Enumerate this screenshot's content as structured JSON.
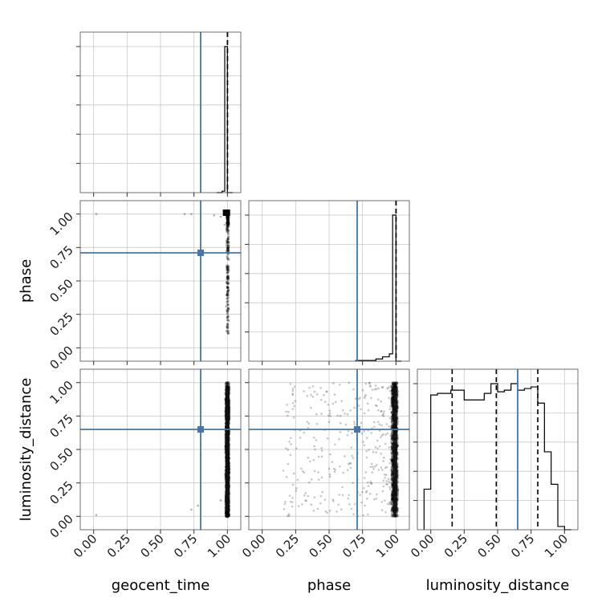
{
  "chart_data": {
    "type": "corner",
    "parameters": [
      "geocent_time",
      "phase",
      "luminosity_distance"
    ],
    "axis_labels": {
      "x": [
        "geocent_time",
        "phase",
        "luminosity_distance"
      ],
      "y": [
        "",
        "phase",
        "luminosity_distance"
      ]
    },
    "axis_range": [
      -0.1,
      1.1
    ],
    "tick_values": [
      0.0,
      0.25,
      0.5,
      0.75,
      1.0
    ],
    "tick_labels": [
      "0.00",
      "0.25",
      "0.50",
      "0.75",
      "1.00"
    ],
    "grid": true,
    "truths": {
      "geocent_time": 0.8,
      "phase": 0.71,
      "luminosity_distance": 0.65
    },
    "colors": {
      "truth": "#4477aa",
      "histogram": "#000000",
      "points": "#000000",
      "grid": "#c8c8c8"
    },
    "histograms": {
      "geocent_time": {
        "bin_edges": [
          0.92,
          0.96,
          0.98,
          1.0,
          1.02,
          1.04
        ],
        "counts": [
          0,
          0.01,
          1.0,
          0,
          0
        ],
        "quantiles": [
          1.0,
          1.0,
          1.0
        ]
      },
      "phase": {
        "bin_edges": [
          0.7,
          0.75,
          0.8,
          0.85,
          0.9,
          0.95,
          0.975,
          1.0,
          1.04
        ],
        "counts": [
          0.005,
          0.005,
          0.005,
          0.015,
          0.03,
          0.05,
          1.0,
          0
        ],
        "quantiles": [
          1.0,
          1.0,
          1.0
        ]
      },
      "luminosity_distance": {
        "bin_edges": [
          -0.05,
          0.0,
          0.05,
          0.1,
          0.15,
          0.2,
          0.25,
          0.3,
          0.35,
          0.4,
          0.45,
          0.5,
          0.55,
          0.6,
          0.65,
          0.7,
          0.75,
          0.8,
          0.85,
          0.9,
          0.95,
          1.0,
          1.05
        ],
        "counts": [
          0.25,
          0.83,
          0.84,
          0.84,
          0.86,
          0.86,
          0.8,
          0.8,
          0.8,
          0.84,
          0.9,
          0.85,
          0.86,
          0.9,
          0.86,
          0.87,
          0.88,
          0.78,
          0.48,
          0.28,
          0.02,
          0
        ],
        "quantiles": [
          0.16,
          0.49,
          0.8
        ]
      }
    },
    "scatter": {
      "phase_vs_geocent_time": {
        "x_spread": [
          0.995,
          1.01
        ],
        "y_range": [
          0.1,
          1.02
        ],
        "outliers": [
          [
            0.02,
            1.0
          ],
          [
            0.68,
            1.0
          ],
          [
            0.73,
            1.0
          ],
          [
            0.9,
            0.99
          ],
          [
            0.95,
            0.98
          ],
          [
            0.98,
            0.92
          ],
          [
            0.99,
            0.31
          ],
          [
            1.0,
            0.18
          ]
        ]
      },
      "luminosity_distance_vs_geocent_time": {
        "x_spread": [
          0.99,
          1.01
        ],
        "y_range": [
          0.0,
          1.0
        ],
        "outliers": [
          [
            0.02,
            0.01
          ],
          [
            0.73,
            0.05
          ],
          [
            0.78,
            0.08
          ],
          [
            0.95,
            0.12
          ]
        ]
      },
      "luminosity_distance_vs_phase": {
        "x_spread": [
          0.97,
          1.01
        ],
        "y_range": [
          0.0,
          1.0
        ],
        "scatter_x_min": 0.15
      }
    }
  }
}
